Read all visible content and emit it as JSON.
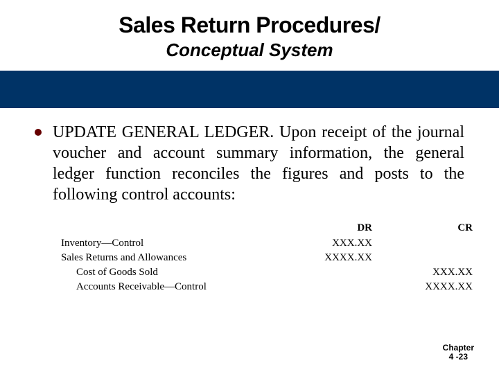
{
  "header": {
    "title": "Sales Return Procedures/",
    "subtitle": "Conceptual System"
  },
  "band": {
    "color": "#003366"
  },
  "body": {
    "paragraph": "UPDATE GENERAL LEDGER. Upon receipt of the journal voucher and account summary information, the general ledger function reconciles the figures and posts to the following control accounts:"
  },
  "ledger": {
    "columns": {
      "account": "",
      "dr": "DR",
      "cr": "CR"
    },
    "rows": [
      {
        "account": "Inventory—Control",
        "dr": "XXX.XX",
        "cr": "",
        "indent": false
      },
      {
        "account": "Sales Returns and Allowances",
        "dr": "XXXX.XX",
        "cr": "",
        "indent": false
      },
      {
        "account": "Cost of Goods Sold",
        "dr": "",
        "cr": "XXX.XX",
        "indent": true
      },
      {
        "account": "Accounts Receivable—Control",
        "dr": "",
        "cr": "XXXX.XX",
        "indent": true
      }
    ]
  },
  "footer": {
    "line1": "Chapter",
    "line2": "4 -23"
  }
}
